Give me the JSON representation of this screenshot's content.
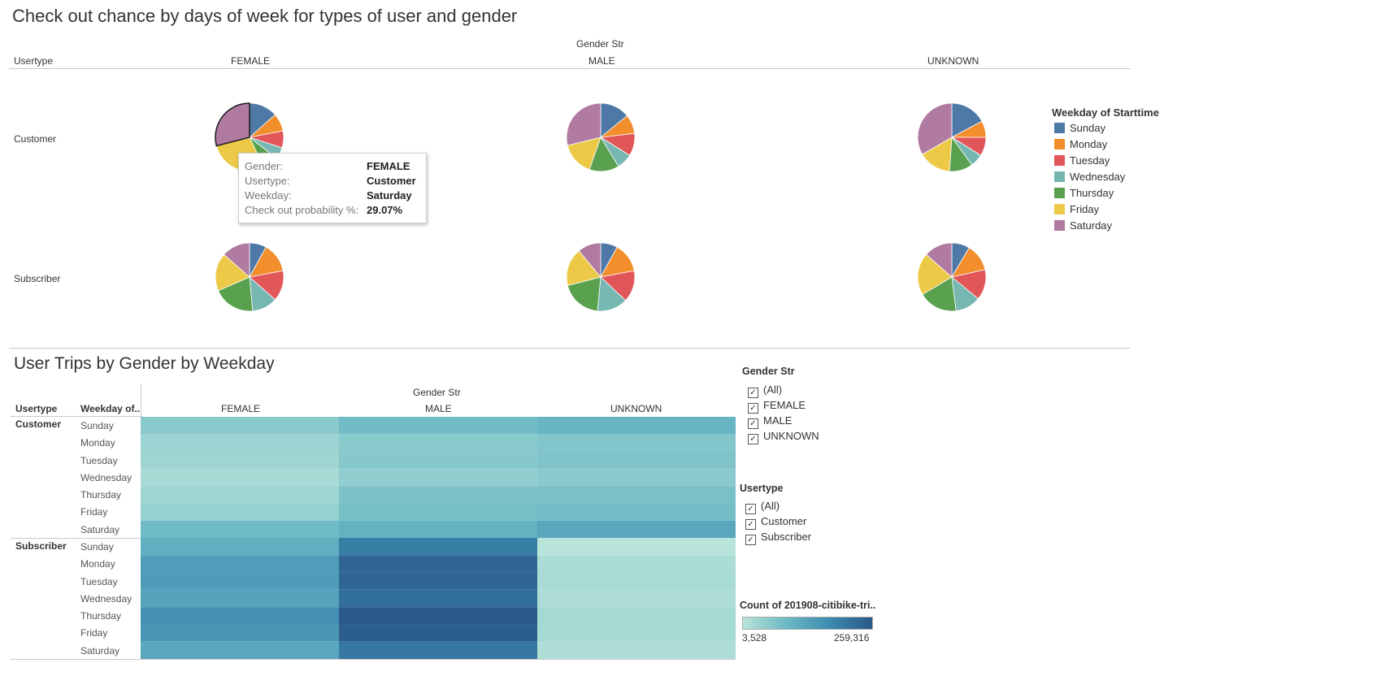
{
  "pie_section": {
    "title": "Check out chance by days of week for types of user and gender",
    "column_group_label": "Gender Str",
    "row_header": "Usertype",
    "columns": [
      "FEMALE",
      "MALE",
      "UNKNOWN"
    ],
    "rows": [
      "Customer",
      "Subscriber"
    ]
  },
  "pie_legend": {
    "title": "Weekday of Starttime",
    "items": [
      {
        "label": "Sunday",
        "color": "#4e79a7"
      },
      {
        "label": "Monday",
        "color": "#f28e2b"
      },
      {
        "label": "Tuesday",
        "color": "#e15759"
      },
      {
        "label": "Wednesday",
        "color": "#76b7b2"
      },
      {
        "label": "Thursday",
        "color": "#59a14f"
      },
      {
        "label": "Friday",
        "color": "#edc948"
      },
      {
        "label": "Saturday",
        "color": "#b07aa1"
      }
    ]
  },
  "tooltip": {
    "rows": [
      {
        "key": "Gender:",
        "value": "FEMALE"
      },
      {
        "key": "Usertype:",
        "value": "Customer"
      },
      {
        "key": "Weekday:",
        "value": "Saturday"
      },
      {
        "key": "Check out probability %:",
        "value": "29.07%"
      }
    ]
  },
  "heat_section": {
    "title": "User Trips by Gender by Weekday",
    "column_group_label": "Gender Str",
    "usertype_header": "Usertype",
    "weekday_header": "Weekday of..",
    "columns": [
      "FEMALE",
      "MALE",
      "UNKNOWN"
    ],
    "row_groups": [
      "Customer",
      "Subscriber"
    ],
    "weekdays": [
      "Sunday",
      "Monday",
      "Tuesday",
      "Wednesday",
      "Thursday",
      "Friday",
      "Saturday"
    ]
  },
  "filters": {
    "gender": {
      "title": "Gender Str",
      "items": [
        "(All)",
        "FEMALE",
        "MALE",
        "UNKNOWN"
      ],
      "checked": true
    },
    "usertype": {
      "title": "Usertype",
      "items": [
        "(All)",
        "Customer",
        "Subscriber"
      ],
      "checked": true
    }
  },
  "color_legend": {
    "title": "Count of 201908-citibike-tri..",
    "min_label": "3,528",
    "max_label": "259,316",
    "min_color": "#b9e4d9",
    "max_color": "#2a5a8a"
  },
  "chart_data": [
    {
      "type": "pie",
      "title": "Check out chance by days of week for types of user and gender",
      "categories": [
        "Sunday",
        "Monday",
        "Tuesday",
        "Wednesday",
        "Thursday",
        "Friday",
        "Saturday"
      ],
      "series": [
        {
          "name": "Customer FEMALE",
          "values": [
            13.5,
            8.5,
            8.0,
            5.5,
            7.5,
            28.0,
            29.07
          ]
        },
        {
          "name": "Customer MALE",
          "values": [
            12.5,
            8.0,
            9.5,
            6.5,
            12.5,
            14.0,
            25.5
          ]
        },
        {
          "name": "Customer UNKNOWN",
          "values": [
            15.5,
            7.0,
            8.0,
            5.5,
            10.0,
            14.0,
            30.0
          ]
        },
        {
          "name": "Subscriber FEMALE",
          "values": [
            8.0,
            14.0,
            14.5,
            12.0,
            20.0,
            18.0,
            13.5
          ]
        },
        {
          "name": "Subscriber MALE",
          "values": [
            8.0,
            14.0,
            15.0,
            14.5,
            19.5,
            18.0,
            11.0
          ]
        },
        {
          "name": "Subscriber UNKNOWN",
          "values": [
            8.5,
            13.0,
            14.5,
            12.0,
            18.5,
            20.0,
            13.5
          ]
        }
      ],
      "legend": "right"
    },
    {
      "type": "heatmap",
      "title": "User Trips by Gender by Weekday",
      "columns": [
        "FEMALE",
        "MALE",
        "UNKNOWN"
      ],
      "rows": [
        {
          "usertype": "Customer",
          "weekday": "Sunday",
          "values": [
            14000,
            28000,
            38000
          ]
        },
        {
          "usertype": "Customer",
          "weekday": "Monday",
          "values": [
            8000,
            15000,
            18000
          ]
        },
        {
          "usertype": "Customer",
          "weekday": "Tuesday",
          "values": [
            7000,
            16000,
            19000
          ]
        },
        {
          "usertype": "Customer",
          "weekday": "Wednesday",
          "values": [
            5000,
            11000,
            14000
          ]
        },
        {
          "usertype": "Customer",
          "weekday": "Thursday",
          "values": [
            7000,
            21000,
            23000
          ]
        },
        {
          "usertype": "Customer",
          "weekday": "Friday",
          "values": [
            9000,
            24000,
            27000
          ]
        },
        {
          "usertype": "Customer",
          "weekday": "Saturday",
          "values": [
            30000,
            42000,
            58000
          ]
        },
        {
          "usertype": "Subscriber",
          "weekday": "Sunday",
          "values": [
            45000,
            148000,
            3528
          ]
        },
        {
          "usertype": "Subscriber",
          "weekday": "Monday",
          "values": [
            78000,
            220000,
            4500
          ]
        },
        {
          "usertype": "Subscriber",
          "weekday": "Tuesday",
          "values": [
            80000,
            222000,
            4700
          ]
        },
        {
          "usertype": "Subscriber",
          "weekday": "Wednesday",
          "values": [
            65000,
            190000,
            4200
          ]
        },
        {
          "usertype": "Subscriber",
          "weekday": "Thursday",
          "values": [
            102000,
            259316,
            5500
          ]
        },
        {
          "usertype": "Subscriber",
          "weekday": "Friday",
          "values": [
            90000,
            245000,
            5200
          ]
        },
        {
          "usertype": "Subscriber",
          "weekday": "Saturday",
          "values": [
            58000,
            165000,
            4000
          ]
        }
      ],
      "color_range": [
        3528,
        259316
      ]
    }
  ]
}
